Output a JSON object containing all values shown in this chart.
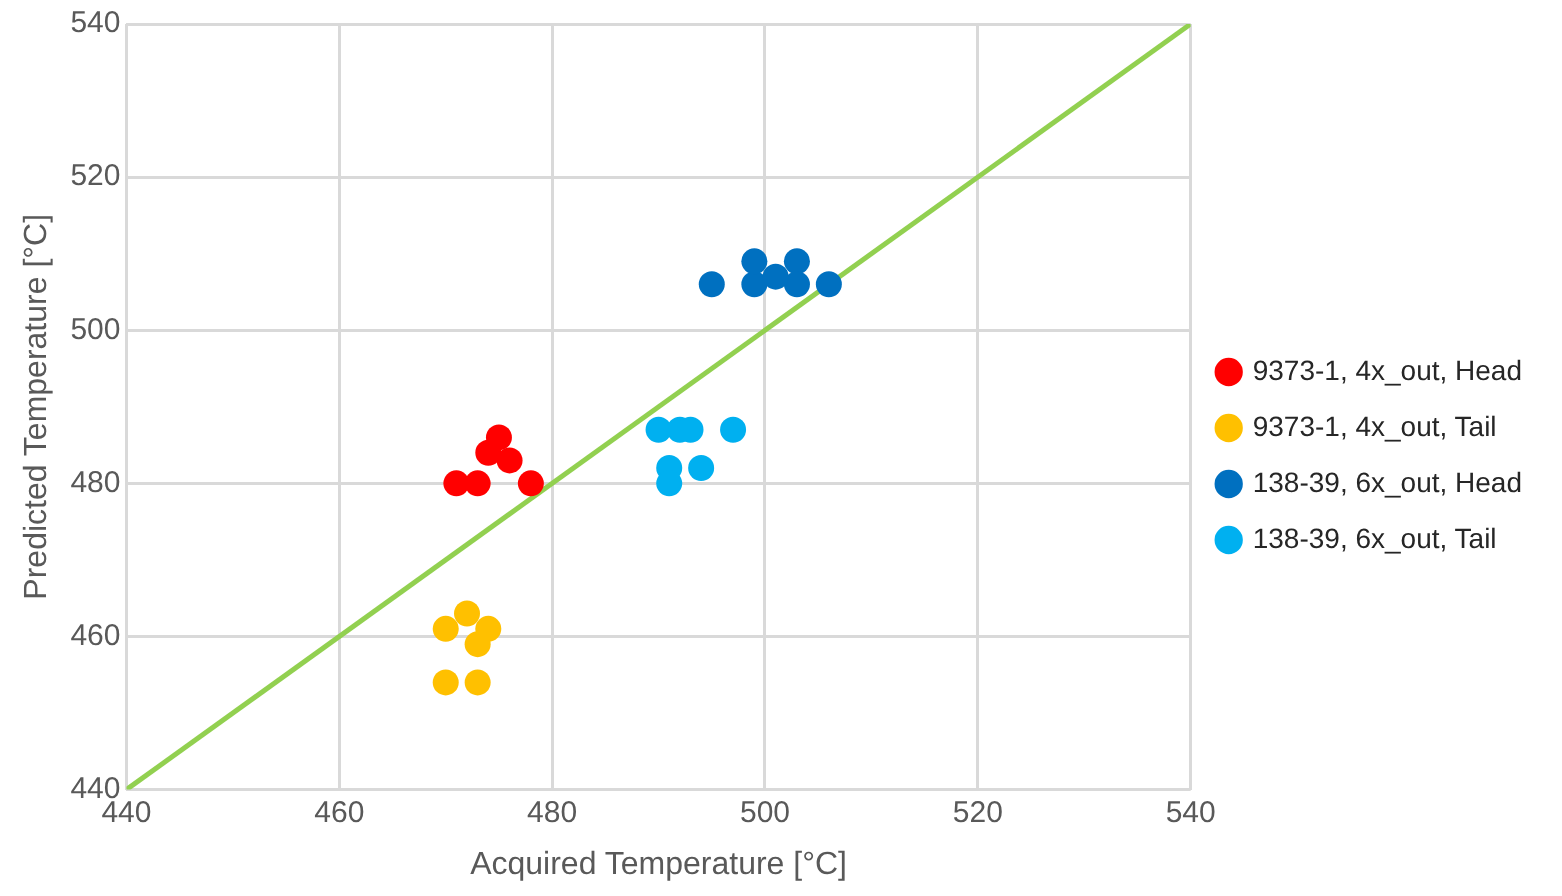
{
  "chart_data": {
    "type": "scatter",
    "xlabel": "Acquired Temperature [°C]",
    "ylabel": "Predicted Temperature [°C]",
    "xlim": [
      440,
      540
    ],
    "xticks": [
      440,
      460,
      480,
      500,
      520,
      540
    ],
    "ylim": [
      440,
      540
    ],
    "yticks": [
      440,
      460,
      480,
      500,
      520,
      540
    ],
    "grid": true,
    "legend": "right",
    "marker": "circle",
    "series": [
      {
        "name": "9373-1, 4x_out, Head",
        "color": "#ff0000",
        "x": [
          471,
          473,
          474,
          475,
          476,
          478
        ],
        "values": [
          480,
          480,
          484,
          486,
          483,
          480
        ]
      },
      {
        "name": "9373-1, 4x_out, Tail",
        "color": "#ffc000",
        "x": [
          470,
          472,
          474,
          473,
          470,
          473
        ],
        "values": [
          461,
          463,
          461,
          459,
          454,
          454
        ]
      },
      {
        "name": "138-39, 6x_out, Head",
        "color": "#0070c0",
        "x": [
          495,
          499,
          499,
          503,
          503,
          506,
          501
        ],
        "values": [
          506,
          506,
          509,
          509,
          506,
          506,
          507
        ]
      },
      {
        "name": "138-39, 6x_out, Tail",
        "color": "#00b0f0",
        "x": [
          490,
          492,
          493,
          497,
          491,
          491,
          494
        ],
        "values": [
          487,
          487,
          487,
          487,
          482,
          480,
          482
        ]
      },
      {
        "type": "line",
        "color": "#92d050",
        "x": [
          440,
          540
        ],
        "values": [
          440,
          540
        ],
        "marker": "none"
      }
    ]
  }
}
